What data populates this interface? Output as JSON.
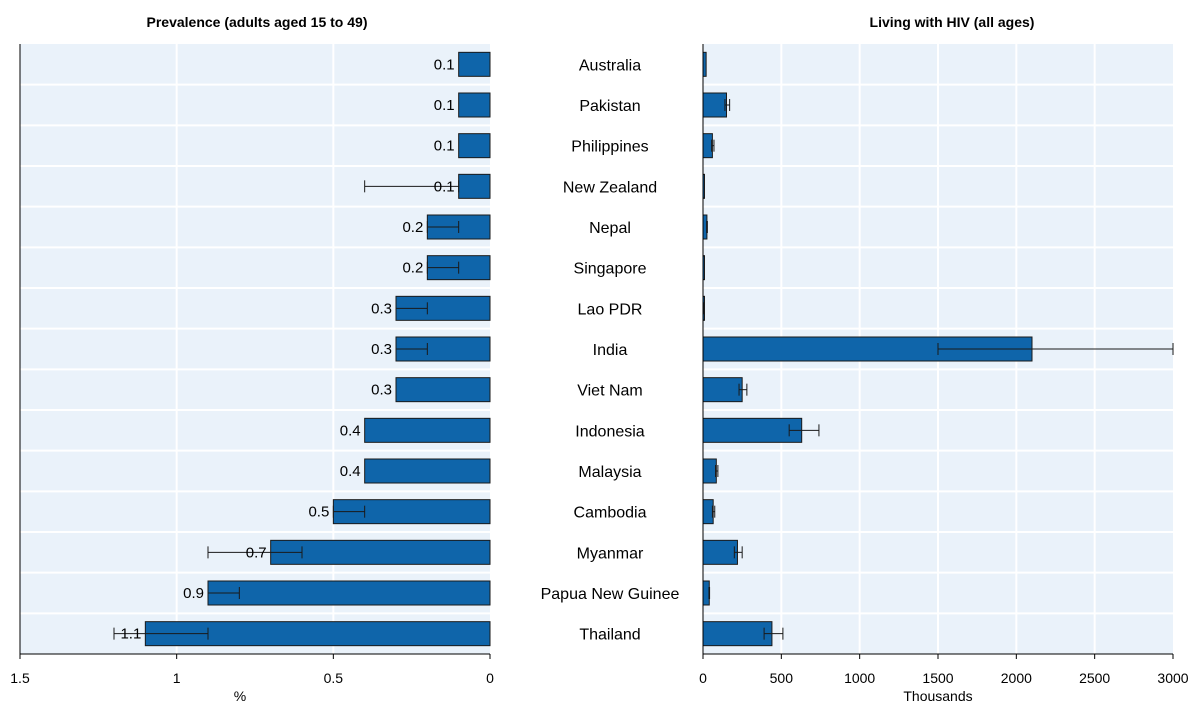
{
  "chart_data": [
    {
      "type": "bar",
      "orientation": "horizontal",
      "title": "Prevalence (adults aged 15 to 49)",
      "xlabel": "%",
      "xlim": [
        1.5,
        0
      ],
      "x_reversed": true,
      "xticks": [
        1.5,
        1,
        0.5,
        0
      ],
      "xtick_labels": [
        "1.5",
        "1",
        "0.5",
        "0"
      ],
      "grid": true,
      "categories": [
        "Australia",
        "Pakistan",
        "Philippines",
        "New Zealand",
        "Nepal",
        "Singapore",
        "Lao PDR",
        "India",
        "Viet Nam",
        "Indonesia",
        "Malaysia",
        "Cambodia",
        "Myanmar",
        "Papua New Guinee",
        "Thailand"
      ],
      "values": [
        0.1,
        0.1,
        0.1,
        0.1,
        0.2,
        0.2,
        0.3,
        0.3,
        0.3,
        0.4,
        0.4,
        0.5,
        0.7,
        0.9,
        1.1
      ],
      "value_labels": [
        "0.1",
        "0.1",
        "0.1",
        "0.1",
        "0.2",
        "0.2",
        "0.3",
        "0.3",
        "0.3",
        "0.4",
        "0.4",
        "0.5",
        "0.7",
        "0.9",
        "1.1"
      ],
      "error_low": [
        0.1,
        0.1,
        0.1,
        0.1,
        0.1,
        0.1,
        0.2,
        0.2,
        0.3,
        0.4,
        0.4,
        0.4,
        0.6,
        0.8,
        0.9
      ],
      "error_high": [
        0.1,
        0.1,
        0.1,
        0.4,
        0.2,
        0.2,
        0.3,
        0.3,
        0.3,
        0.4,
        0.4,
        0.5,
        0.9,
        0.9,
        1.2
      ],
      "bar_color": "#0F65AA"
    },
    {
      "type": "bar",
      "orientation": "horizontal",
      "title": "Living with HIV (all ages)",
      "xlabel": "Thousands",
      "xlim": [
        0,
        3000
      ],
      "xticks": [
        0,
        500,
        1000,
        1500,
        2000,
        2500,
        3000
      ],
      "xtick_labels": [
        "0",
        "500",
        "1000",
        "1500",
        "2000",
        "2500",
        "3000"
      ],
      "grid": true,
      "categories": [
        "Australia",
        "Pakistan",
        "Philippines",
        "New Zealand",
        "Nepal",
        "Singapore",
        "Lao PDR",
        "India",
        "Viet Nam",
        "Indonesia",
        "Malaysia",
        "Cambodia",
        "Myanmar",
        "Papua New Guinee",
        "Thailand"
      ],
      "values": [
        20,
        150,
        60,
        3,
        25,
        4,
        8,
        2100,
        250,
        630,
        85,
        65,
        220,
        40,
        440
      ],
      "error_low": [
        20,
        140,
        55,
        3,
        23,
        4,
        7,
        1500,
        230,
        550,
        80,
        60,
        200,
        38,
        390
      ],
      "error_high": [
        20,
        170,
        70,
        3,
        28,
        4,
        9,
        3000,
        280,
        740,
        95,
        75,
        250,
        42,
        510
      ],
      "bar_color": "#0F65AA"
    }
  ]
}
